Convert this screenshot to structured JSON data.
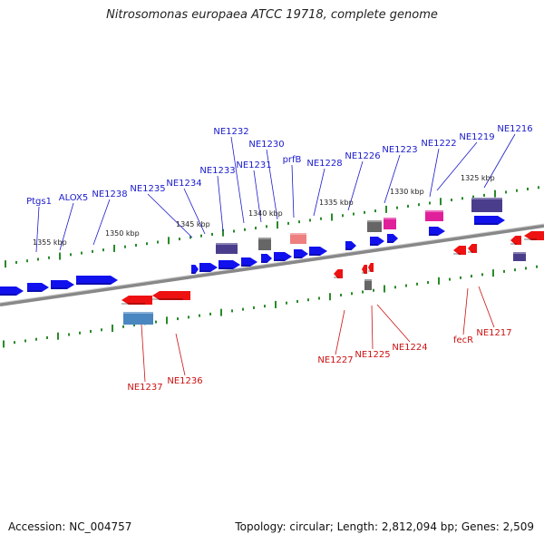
{
  "title": "Nitrosomonas europaea ATCC 19718, complete genome",
  "footer": {
    "accession": "Accession: NC_004757",
    "topology": "Topology: circular; Length: 2,812,094 bp; Genes: 2,509"
  },
  "colors": {
    "forward_gene": "#1111ee",
    "reverse_gene": "#ee1111",
    "forward_label": "#1a1acc",
    "reverse_label": "#cc1111",
    "tick": "#2a8a2a",
    "backbone": "#888888",
    "rna_navy": "#4a3e8c",
    "rna_gray": "#666666",
    "rna_pink": "#e0209a",
    "rna_salmon": "#ee7f7f",
    "rna_steel": "#4a86c0"
  },
  "scale_labels": [
    "1355 kbp",
    "1350 kbp",
    "1345 kbp",
    "1340 kbp",
    "1335 kbp",
    "1330 kbp",
    "1325 kbp"
  ],
  "forward_labels": [
    "Ptgs1",
    "ALOX5",
    "NE1238",
    "NE1235",
    "NE1234",
    "NE1233",
    "NE1232",
    "NE1231",
    "NE1230",
    "prfB",
    "NE1228",
    "NE1226",
    "NE1223",
    "NE1222",
    "NE1219",
    "NE1216"
  ],
  "reverse_labels": [
    "NE1237",
    "NE1236",
    "NE1227",
    "NE1225",
    "NE1224",
    "fecR",
    "NE1217"
  ]
}
